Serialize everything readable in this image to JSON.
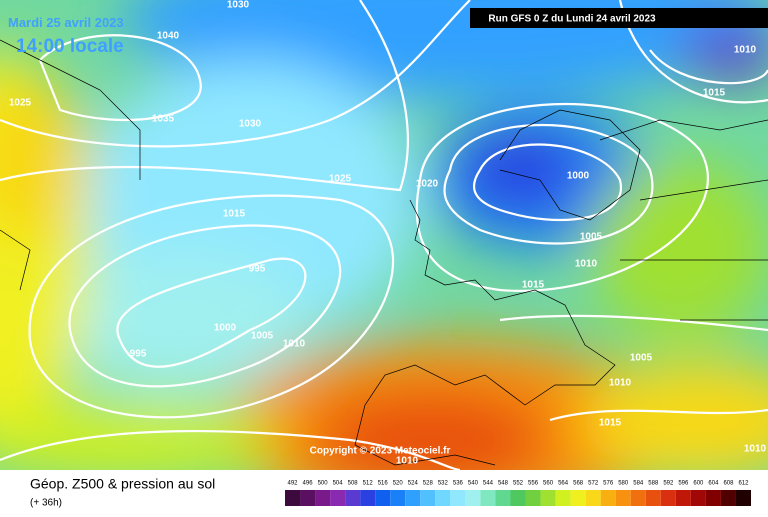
{
  "header": {
    "date": "Mardi 25 avril 2023",
    "time": "14:00 locale",
    "run": "Run GFS 0 Z du Lundi 24 avril 2023"
  },
  "isobars": [
    "1030",
    "1040",
    "1025",
    "1035",
    "1030",
    "1025",
    "1020",
    "1015",
    "995",
    "1000",
    "1005",
    "1010",
    "995",
    "1000",
    "1005",
    "1010",
    "1015",
    "1005",
    "1010",
    "1015",
    "1010",
    "1010",
    "1015",
    "1010"
  ],
  "copyright": "Copyright © 2023 Meteociel.fr",
  "footer": {
    "title": "Géop. Z500 & pression au sol",
    "subtitle": "(+ 36h)"
  },
  "colorbar": {
    "ticks": [
      492,
      496,
      500,
      504,
      508,
      512,
      516,
      520,
      524,
      528,
      532,
      536,
      540,
      544,
      548,
      552,
      556,
      560,
      564,
      568,
      572,
      576,
      580,
      584,
      588,
      592,
      596,
      600,
      604,
      608,
      612
    ],
    "colors": [
      "#3c0a3c",
      "#5a1060",
      "#7a1a8a",
      "#8a2ab0",
      "#5a3ad0",
      "#2a40e0",
      "#1060f0",
      "#1a80f8",
      "#30a0ff",
      "#50c0ff",
      "#70d8ff",
      "#90e8ff",
      "#a0f0f0",
      "#80e8c0",
      "#60d890",
      "#50c860",
      "#70d040",
      "#a0e030",
      "#d0f020",
      "#f0f020",
      "#f8d818",
      "#f8b010",
      "#f89010",
      "#f07010",
      "#e85010",
      "#d83010",
      "#c01808",
      "#a00808",
      "#800000",
      "#500000",
      "#200000"
    ]
  }
}
